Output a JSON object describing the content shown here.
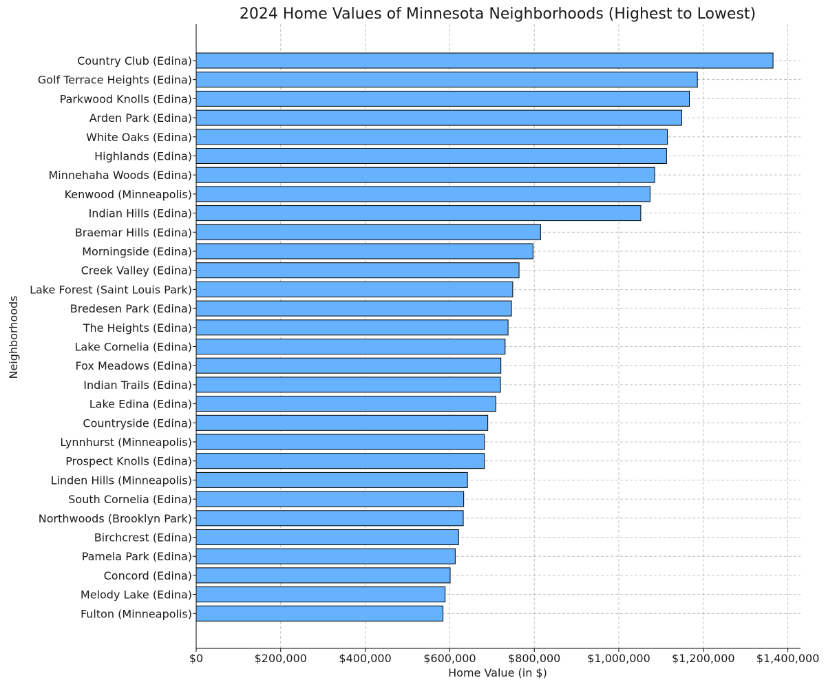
{
  "chart_data": {
    "type": "bar",
    "orientation": "horizontal",
    "title": "2024 Home Values of Minnesota Neighborhoods (Highest to Lowest)",
    "xlabel": "Home Value (in $)",
    "ylabel": "Neighborhoods",
    "xlim": [
      0,
      1430000
    ],
    "xticks": [
      0,
      200000,
      400000,
      600000,
      800000,
      1000000,
      1200000,
      1400000
    ],
    "xtick_labels": [
      "$0",
      "$200,000",
      "$400,000",
      "$600,000",
      "$800,000",
      "$1,000,000",
      "$1,200,000",
      "$1,400,000"
    ],
    "grid": true,
    "bar_color": "#66b2ff",
    "bar_edge_color": "#000000",
    "categories": [
      "Country Club (Edina)",
      "Golf Terrace Heights (Edina)",
      "Parkwood Knolls (Edina)",
      "Arden Park (Edina)",
      "White Oaks (Edina)",
      "Highlands (Edina)",
      "Minnehaha Woods (Edina)",
      "Kenwood (Minneapolis)",
      "Indian Hills (Edina)",
      "Braemar Hills (Edina)",
      "Morningside (Edina)",
      "Creek Valley (Edina)",
      "Lake Forest (Saint Louis Park)",
      "Bredesen Park (Edina)",
      "The Heights (Edina)",
      "Lake Cornelia (Edina)",
      "Fox Meadows (Edina)",
      "Indian Trails (Edina)",
      "Lake Edina (Edina)",
      "Countryside (Edina)",
      "Lynnhurst (Minneapolis)",
      "Prospect Knolls (Edina)",
      "Linden Hills (Minneapolis)",
      "South Cornelia (Edina)",
      "Northwoods (Brooklyn Park)",
      "Birchcrest (Edina)",
      "Pamela Park (Edina)",
      "Concord (Edina)",
      "Melody Lake (Edina)",
      "Fulton (Minneapolis)"
    ],
    "values": [
      1365000,
      1186000,
      1167000,
      1149000,
      1115000,
      1113000,
      1085000,
      1074000,
      1052000,
      815000,
      797000,
      764000,
      749000,
      746000,
      738000,
      731000,
      721000,
      720000,
      709000,
      690000,
      682000,
      682000,
      642000,
      633000,
      632000,
      621000,
      613000,
      601000,
      589000,
      584000
    ]
  }
}
